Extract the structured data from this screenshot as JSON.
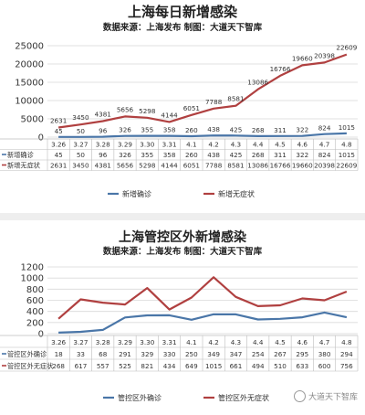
{
  "colors": {
    "confirmed": "#4a76a8",
    "asymptomatic": "#b04040",
    "grid": "#d9d9d9",
    "axis": "#bdbdbd",
    "text": "#333333"
  },
  "watermark": "大道天下智库",
  "chart_data": [
    {
      "type": "line",
      "title": "上海每日新增感染",
      "subtitle": "数据来源：上海发布 制图：大道天下智库",
      "categories": [
        "3.26",
        "3.27",
        "3.28",
        "3.29",
        "3.30",
        "3.31",
        "4.1",
        "4.2",
        "4.3",
        "4.4",
        "4.5",
        "4.6",
        "4.7",
        "4.8"
      ],
      "ylim": [
        0,
        25000
      ],
      "yticks": [
        0,
        5000,
        10000,
        15000,
        20000,
        25000
      ],
      "grid": true,
      "legend": "bottom",
      "series": [
        {
          "name": "新增确诊",
          "color_key": "confirmed",
          "labels_on_chart": true,
          "values": [
            45,
            50,
            96,
            326,
            355,
            358,
            260,
            438,
            425,
            268,
            311,
            322,
            824,
            1015
          ]
        },
        {
          "name": "新增无症状",
          "color_key": "asymptomatic",
          "labels_on_chart": true,
          "values": [
            2631,
            3450,
            4381,
            5656,
            5298,
            4144,
            6051,
            7788,
            8581,
            13086,
            16766,
            19660,
            20398,
            22609
          ]
        }
      ]
    },
    {
      "type": "line",
      "title": "上海管控区外新增感染",
      "subtitle": "数据来源：上海发布 制图：大道天下智库",
      "categories": [
        "3.26",
        "3.27",
        "3.28",
        "3.29",
        "3.30",
        "3.31",
        "4.1",
        "4.2",
        "4.3",
        "4.4",
        "4.5",
        "4.6",
        "4.7",
        "4.8"
      ],
      "ylim": [
        0,
        1200
      ],
      "yticks": [
        0,
        200,
        400,
        600,
        800,
        1000,
        1200
      ],
      "grid": true,
      "legend": "bottom",
      "series": [
        {
          "name": "管控区外确诊",
          "color_key": "confirmed",
          "labels_on_chart": false,
          "values": [
            18,
            33,
            68,
            291,
            329,
            330,
            250,
            349,
            347,
            254,
            267,
            295,
            380,
            294
          ]
        },
        {
          "name": "管控区外无症状",
          "color_key": "asymptomatic",
          "labels_on_chart": false,
          "values": [
            268,
            617,
            557,
            525,
            821,
            434,
            649,
            1015,
            661,
            494,
            510,
            633,
            600,
            756
          ]
        }
      ]
    }
  ]
}
